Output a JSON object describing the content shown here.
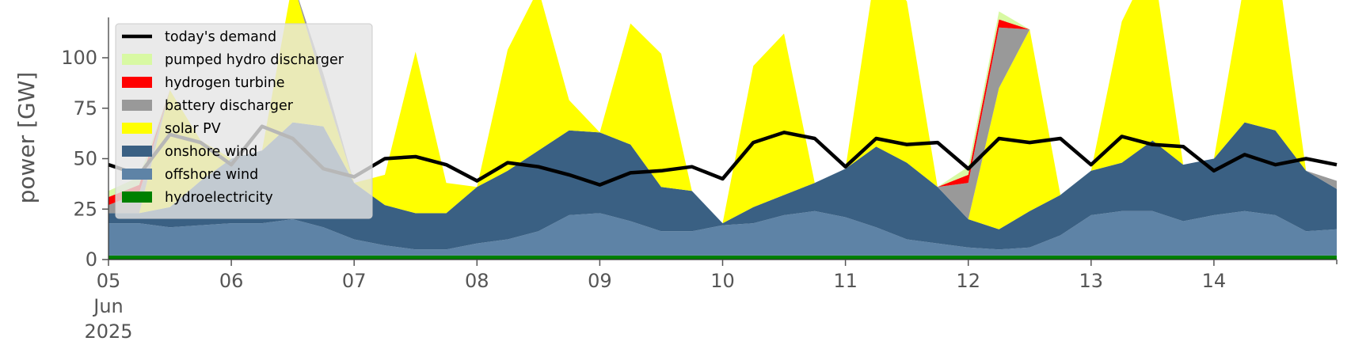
{
  "chart_data": {
    "type": "area",
    "ylabel": "power [GW]",
    "ylim": [
      0,
      120
    ],
    "yticks": [
      0,
      25,
      50,
      75,
      100
    ],
    "xlim": [
      "2025-06-05T00:00",
      "2025-06-15T00:00"
    ],
    "x_tick_labels": [
      {
        "date": "2025-06-05",
        "lines": [
          "05",
          "Jun",
          "2025"
        ]
      },
      {
        "date": "2025-06-06",
        "lines": [
          "06"
        ]
      },
      {
        "date": "2025-06-07",
        "lines": [
          "07"
        ]
      },
      {
        "date": "2025-06-08",
        "lines": [
          "08"
        ]
      },
      {
        "date": "2025-06-09",
        "lines": [
          "09"
        ]
      },
      {
        "date": "2025-06-10",
        "lines": [
          "10"
        ]
      },
      {
        "date": "2025-06-11",
        "lines": [
          "11"
        ]
      },
      {
        "date": "2025-06-12",
        "lines": [
          "12"
        ]
      },
      {
        "date": "2025-06-13",
        "lines": [
          "13"
        ]
      },
      {
        "date": "2025-06-14",
        "lines": [
          "14"
        ]
      }
    ],
    "grid": false,
    "legend_position": "top-left",
    "legend_labels": {
      "demand": "today's demand",
      "pumped_hydro": "pumped hydro discharger",
      "hydrogen": "hydrogen turbine",
      "battery": "battery discharger",
      "solar": "solar PV",
      "onshore": "onshore wind",
      "offshore": "offshore wind",
      "hydro": "hydroelectricity"
    },
    "legend_order": [
      "demand",
      "pumped_hydro",
      "hydrogen",
      "battery",
      "solar",
      "onshore",
      "offshore",
      "hydro"
    ],
    "stack_order": [
      "hydro",
      "offshore",
      "onshore",
      "solar",
      "battery",
      "hydrogen",
      "pumped_hydro"
    ],
    "colors": {
      "demand": "#000000",
      "pumped_hydro": "#d8f9a3",
      "hydrogen": "#ff0000",
      "battery": "#999999",
      "solar": "#ffff00",
      "onshore": "#3a6083",
      "offshore": "#5e83a6",
      "hydro": "#008000"
    },
    "x": [
      "2025-06-05T00:00",
      "2025-06-05T06:00",
      "2025-06-05T12:00",
      "2025-06-05T18:00",
      "2025-06-06T00:00",
      "2025-06-06T06:00",
      "2025-06-06T12:00",
      "2025-06-06T18:00",
      "2025-06-07T00:00",
      "2025-06-07T06:00",
      "2025-06-07T12:00",
      "2025-06-07T18:00",
      "2025-06-08T00:00",
      "2025-06-08T06:00",
      "2025-06-08T12:00",
      "2025-06-08T18:00",
      "2025-06-09T00:00",
      "2025-06-09T06:00",
      "2025-06-09T12:00",
      "2025-06-09T18:00",
      "2025-06-10T00:00",
      "2025-06-10T06:00",
      "2025-06-10T12:00",
      "2025-06-10T18:00",
      "2025-06-11T00:00",
      "2025-06-11T06:00",
      "2025-06-11T12:00",
      "2025-06-11T18:00",
      "2025-06-12T00:00",
      "2025-06-12T06:00",
      "2025-06-12T12:00",
      "2025-06-12T18:00",
      "2025-06-13T00:00",
      "2025-06-13T06:00",
      "2025-06-13T12:00",
      "2025-06-13T18:00",
      "2025-06-14T00:00",
      "2025-06-14T06:00",
      "2025-06-14T12:00",
      "2025-06-14T18:00",
      "2025-06-15T00:00"
    ],
    "series": {
      "hydro": [
        2,
        2,
        2,
        2,
        2,
        2,
        2,
        2,
        2,
        2,
        2,
        2,
        2,
        2,
        2,
        2,
        2,
        2,
        2,
        2,
        2,
        2,
        2,
        2,
        2,
        2,
        2,
        2,
        2,
        2,
        2,
        2,
        2,
        2,
        2,
        2,
        2,
        2,
        2,
        2,
        2
      ],
      "offshore": [
        16,
        16,
        14,
        15,
        16,
        16,
        18,
        14,
        8,
        5,
        3,
        3,
        6,
        8,
        12,
        20,
        21,
        17,
        12,
        12,
        15,
        16,
        20,
        22,
        19,
        14,
        8,
        6,
        4,
        3,
        4,
        10,
        20,
        22,
        22,
        17,
        20,
        22,
        20,
        12,
        13
      ],
      "onshore": [
        5,
        5,
        10,
        22,
        32,
        36,
        48,
        50,
        28,
        20,
        18,
        18,
        28,
        34,
        40,
        42,
        40,
        38,
        22,
        20,
        1,
        8,
        10,
        14,
        24,
        40,
        38,
        28,
        14,
        10,
        18,
        20,
        22,
        24,
        35,
        28,
        28,
        44,
        42,
        30,
        20
      ],
      "solar": [
        0,
        0,
        58,
        20,
        0,
        0,
        70,
        20,
        0,
        15,
        80,
        15,
        0,
        60,
        80,
        15,
        0,
        60,
        66,
        0,
        0,
        70,
        80,
        0,
        0,
        90,
        80,
        0,
        0,
        70,
        90,
        0,
        0,
        70,
        90,
        0,
        0,
        70,
        90,
        0,
        0
      ],
      "battery": [
        4,
        10,
        0,
        0,
        0,
        0,
        0,
        6,
        0,
        0,
        0,
        0,
        0,
        0,
        0,
        0,
        0,
        0,
        0,
        0,
        0,
        0,
        0,
        0,
        0,
        0,
        0,
        0,
        18,
        30,
        0,
        0,
        0,
        0,
        0,
        0,
        0,
        0,
        0,
        0,
        4
      ],
      "hydrogen": [
        4,
        4,
        0,
        0,
        0,
        0,
        0,
        0,
        0,
        0,
        0,
        0,
        0,
        0,
        0,
        0,
        0,
        0,
        0,
        0,
        0,
        0,
        0,
        0,
        0,
        0,
        0,
        0,
        4,
        4,
        0,
        0,
        0,
        0,
        0,
        0,
        0,
        0,
        0,
        0,
        0
      ],
      "pumped_hydro": [
        3,
        4,
        0,
        0,
        0,
        0,
        0,
        0,
        0,
        0,
        0,
        0,
        0,
        0,
        0,
        0,
        0,
        0,
        0,
        0,
        0,
        0,
        0,
        0,
        0,
        0,
        0,
        0,
        4,
        4,
        0,
        0,
        0,
        0,
        0,
        0,
        0,
        0,
        0,
        0,
        0
      ],
      "demand": [
        47,
        42,
        62,
        58,
        47,
        66,
        60,
        45,
        41,
        50,
        51,
        47,
        39,
        48,
        46,
        42,
        37,
        43,
        44,
        46,
        40,
        58,
        63,
        60,
        46,
        60,
        57,
        58,
        45,
        60,
        58,
        60,
        47,
        61,
        57,
        56,
        44,
        52,
        47,
        50,
        47
      ]
    }
  }
}
